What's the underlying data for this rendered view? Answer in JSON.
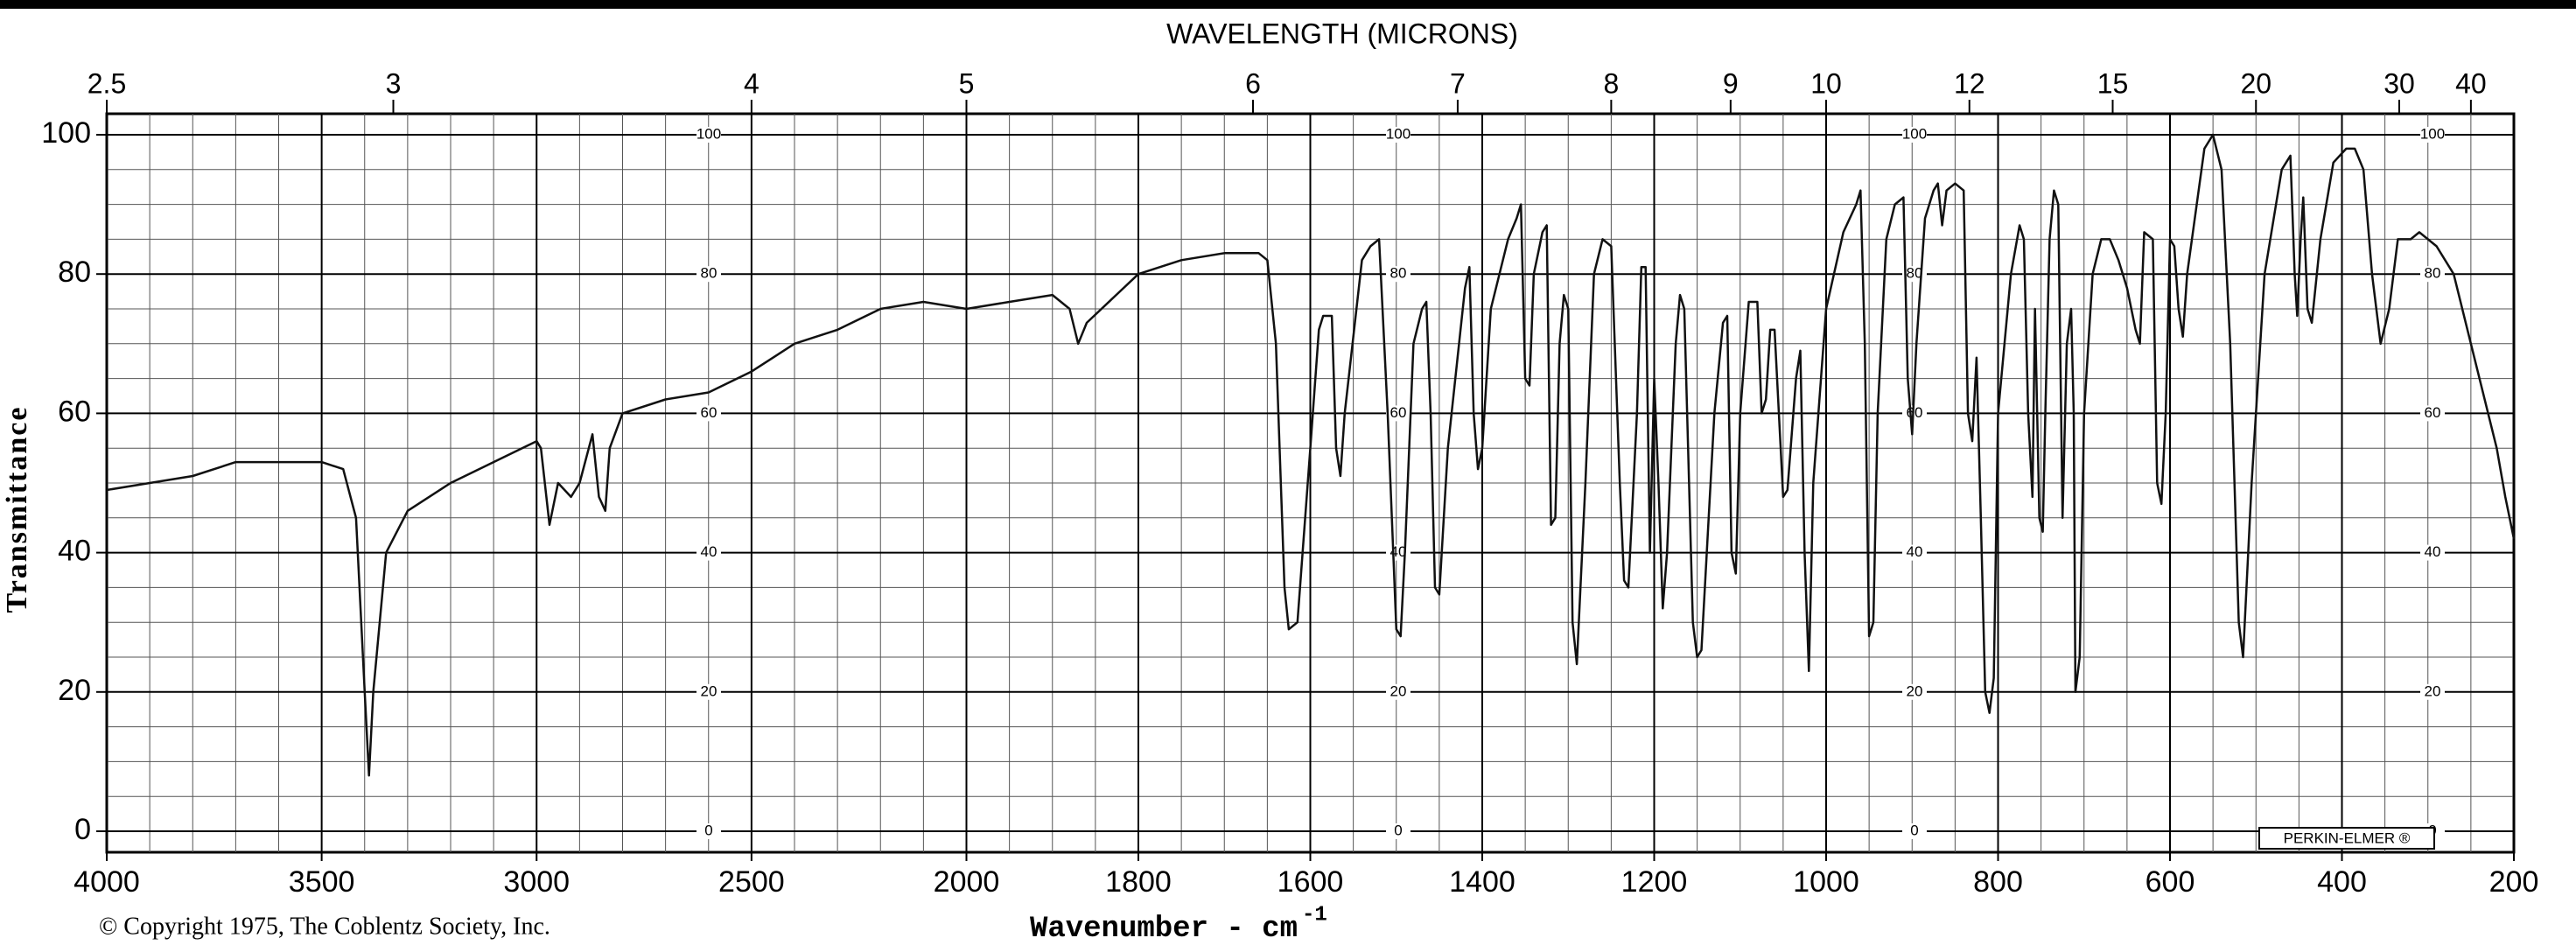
{
  "chart_data": {
    "type": "line",
    "title": "WAVELENGTH (MICRONS)",
    "xlabel": "Wavenumber - cm",
    "xlabel_superscript": "-1",
    "ylabel": "Transmittance",
    "copyright": "© Copyright 1975, The Coblentz Society, Inc.",
    "maker": "PERKIN-ELMER ®",
    "color": "#111111",
    "grid": true,
    "xlim": [
      4000,
      200
    ],
    "x_scale_change": {
      "at": 2000,
      "factor": 2
    },
    "xticks": [
      4000,
      3500,
      3000,
      2500,
      2000,
      1800,
      1600,
      1400,
      1200,
      1000,
      800,
      600,
      400,
      200
    ],
    "top_ticks": [
      2.5,
      3,
      4,
      5,
      6,
      7,
      8,
      9,
      10,
      12,
      15,
      20,
      30,
      40
    ],
    "ylim": [
      0,
      100
    ],
    "yticks": [
      0,
      20,
      40,
      60,
      80,
      100
    ],
    "inner_yticks": [
      0,
      20,
      40,
      60,
      80,
      100
    ],
    "x": [
      4000,
      3900,
      3800,
      3700,
      3600,
      3500,
      3450,
      3420,
      3400,
      3390,
      3380,
      3350,
      3300,
      3200,
      3100,
      3000,
      2990,
      2970,
      2950,
      2920,
      2900,
      2870,
      2855,
      2840,
      2830,
      2800,
      2700,
      2600,
      2500,
      2400,
      2300,
      2200,
      2100,
      2000,
      1950,
      1900,
      1880,
      1870,
      1860,
      1800,
      1750,
      1700,
      1660,
      1650,
      1640,
      1630,
      1625,
      1615,
      1600,
      1590,
      1585,
      1575,
      1570,
      1565,
      1560,
      1540,
      1530,
      1520,
      1510,
      1500,
      1495,
      1490,
      1480,
      1470,
      1465,
      1460,
      1455,
      1450,
      1440,
      1420,
      1415,
      1410,
      1405,
      1400,
      1390,
      1370,
      1360,
      1355,
      1350,
      1345,
      1340,
      1330,
      1325,
      1320,
      1315,
      1310,
      1305,
      1300,
      1295,
      1290,
      1280,
      1270,
      1260,
      1250,
      1240,
      1235,
      1230,
      1220,
      1215,
      1210,
      1205,
      1200,
      1195,
      1190,
      1185,
      1175,
      1170,
      1165,
      1155,
      1150,
      1145,
      1130,
      1120,
      1115,
      1110,
      1105,
      1100,
      1090,
      1080,
      1075,
      1070,
      1065,
      1060,
      1050,
      1045,
      1035,
      1030,
      1025,
      1020,
      1015,
      1000,
      980,
      965,
      960,
      955,
      950,
      945,
      940,
      930,
      920,
      910,
      905,
      900,
      895,
      885,
      875,
      870,
      865,
      860,
      850,
      840,
      835,
      830,
      825,
      820,
      815,
      810,
      805,
      800,
      785,
      775,
      770,
      765,
      760,
      757,
      752,
      748,
      745,
      740,
      735,
      730,
      725,
      720,
      715,
      712,
      710,
      705,
      700,
      690,
      680,
      670,
      660,
      650,
      640,
      635,
      630,
      620,
      615,
      610,
      605,
      600,
      595,
      590,
      585,
      580,
      560,
      550,
      540,
      530,
      520,
      515,
      505,
      490,
      470,
      460,
      455,
      452,
      448,
      445,
      440,
      435,
      425,
      410,
      395,
      385,
      375,
      365,
      355,
      345,
      335,
      320,
      310,
      290,
      270,
      240,
      220,
      210,
      200
    ],
    "values": [
      49,
      50,
      51,
      53,
      53,
      53,
      52,
      45,
      20,
      8,
      20,
      40,
      46,
      50,
      53,
      56,
      55,
      44,
      50,
      48,
      50,
      57,
      48,
      46,
      55,
      60,
      62,
      63,
      66,
      70,
      72,
      75,
      76,
      75,
      76,
      77,
      75,
      70,
      73,
      80,
      82,
      83,
      83,
      82,
      70,
      35,
      29,
      30,
      55,
      72,
      74,
      74,
      55,
      51,
      60,
      82,
      84,
      85,
      60,
      29,
      28,
      40,
      70,
      75,
      76,
      60,
      35,
      34,
      55,
      78,
      81,
      60,
      52,
      55,
      75,
      85,
      88,
      90,
      65,
      64,
      80,
      86,
      87,
      44,
      45,
      70,
      77,
      75,
      30,
      24,
      50,
      80,
      85,
      84,
      50,
      36,
      35,
      60,
      81,
      81,
      40,
      65,
      50,
      32,
      40,
      70,
      77,
      75,
      30,
      25,
      26,
      60,
      73,
      74,
      40,
      37,
      60,
      76,
      76,
      60,
      62,
      72,
      72,
      48,
      49,
      65,
      69,
      40,
      23,
      50,
      75,
      86,
      90,
      92,
      70,
      28,
      30,
      60,
      85,
      90,
      91,
      65,
      57,
      70,
      88,
      92,
      93,
      87,
      92,
      93,
      92,
      60,
      56,
      68,
      45,
      20,
      17,
      22,
      60,
      80,
      87,
      85,
      60,
      48,
      75,
      45,
      43,
      60,
      85,
      92,
      90,
      45,
      70,
      75,
      60,
      20,
      25,
      60,
      80,
      85,
      85,
      82,
      78,
      72,
      70,
      86,
      85,
      50,
      47,
      60,
      85,
      84,
      75,
      71,
      80,
      98,
      100,
      95,
      70,
      30,
      25,
      50,
      80,
      95,
      97,
      80,
      74,
      85,
      91,
      75,
      73,
      85,
      96,
      98,
      98,
      95,
      80,
      70,
      75,
      85,
      85,
      86,
      84,
      80,
      65,
      55,
      48,
      42
    ]
  }
}
